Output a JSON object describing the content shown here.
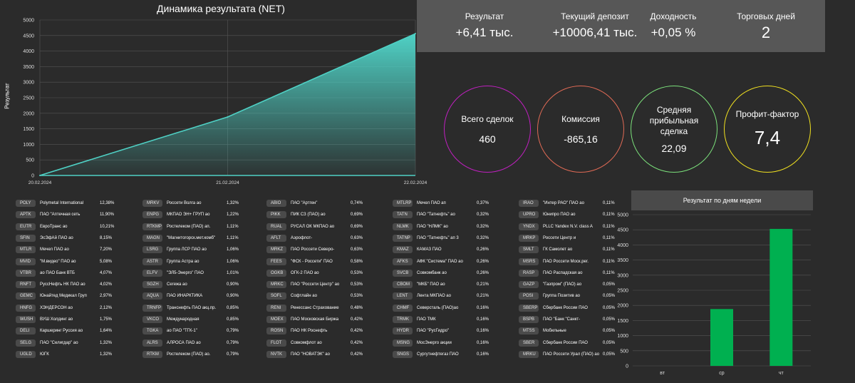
{
  "kpis": [
    {
      "label": "Результат",
      "value": "+6,41 тыс."
    },
    {
      "label": "Текущий депозит",
      "value": "+10006,41 тыс."
    },
    {
      "label": "Доходность",
      "value": "+0,05 %"
    },
    {
      "label": "Торговых дней",
      "value": "2"
    }
  ],
  "circles": [
    {
      "label": "Всего сделок",
      "value": "460",
      "color": "#c020c0"
    },
    {
      "label": "Комиссия",
      "value": "-865,16",
      "color": "#e06a55"
    },
    {
      "label": "Средняя прибыльная сделка",
      "value": "22,09",
      "color": "#7be07b"
    },
    {
      "label": "Профит-фактор",
      "value": "7,4",
      "color": "#f0e020"
    }
  ],
  "chart_data": [
    {
      "type": "area",
      "title": "Динамика результата (NET)",
      "xlabel": "",
      "ylabel": "Результат",
      "x_ticks": [
        "20.02.2024",
        "21.02.2024",
        "22.02.2024"
      ],
      "x": [
        0,
        1,
        2
      ],
      "y": [
        0,
        1880,
        4560
      ],
      "y_ticks": [
        0,
        500,
        1000,
        1500,
        2000,
        2500,
        3000,
        3500,
        4000,
        4500,
        5000
      ],
      "ylim": [
        0,
        5000
      ],
      "color": "#4fd1c5",
      "grid": true
    },
    {
      "type": "bar",
      "title": "Результат по дням недели",
      "categories": [
        "вт",
        "ср",
        "чт"
      ],
      "values": [
        0,
        1880,
        4530
      ],
      "y_ticks": [
        0,
        500,
        1000,
        1500,
        2000,
        2500,
        3000,
        3500,
        4000,
        4500,
        5000
      ],
      "ylim": [
        0,
        5000
      ],
      "color": "#00b050",
      "grid": true
    }
  ],
  "tickers": [
    [
      {
        "t": "POLY",
        "n": "Polymetal International",
        "p": "12,38%"
      },
      {
        "t": "APTK",
        "n": "ПАО \"Аптечная сеть",
        "p": "11,90%"
      },
      {
        "t": "EUTR",
        "n": "ЕвроТранс ао",
        "p": "10,21%"
      },
      {
        "t": "SFIN",
        "n": "ЭсЭфАй ПАО ао",
        "p": "8,15%"
      },
      {
        "t": "MTLR",
        "n": "Мечел ПАО ао",
        "p": "7,20%"
      },
      {
        "t": "MVID",
        "n": "\"М.видео\" ПАО ао",
        "p": "5,08%"
      },
      {
        "t": "VTBR",
        "n": "ао ПАО Банк ВТБ",
        "p": "4,07%"
      },
      {
        "t": "RNFT",
        "n": "РуссНефть НК ПАО ао",
        "p": "4,02%"
      },
      {
        "t": "GEMC",
        "n": "Юнайтед Медикал Груп",
        "p": "2,97%"
      },
      {
        "t": "HNFG",
        "n": "ХЭНДЕРСОН ао",
        "p": "2,12%"
      },
      {
        "t": "WUSH",
        "n": "ВУШ Холдинг ао",
        "p": "1,75%"
      },
      {
        "t": "DELI",
        "n": "Каршеринг Руссия ао",
        "p": "1,64%"
      },
      {
        "t": "SELG",
        "n": "ПАО \"Селигдар\" ао",
        "p": "1,32%"
      },
      {
        "t": "UGLD",
        "n": "ЮГК",
        "p": "1,32%"
      }
    ],
    [
      {
        "t": "MRKV",
        "n": "Россети Волга ао",
        "p": "1,32%"
      },
      {
        "t": "ENPG",
        "n": "МКПАО ЭН+ ГРУП ао",
        "p": "1,22%"
      },
      {
        "t": "RTKMP",
        "n": "Ростелеком (ПАО) ап.",
        "p": "1,11%"
      },
      {
        "t": "MAGN",
        "n": "\"Магнитогорск.мет.комб\"",
        "p": "1,11%"
      },
      {
        "t": "LSRG",
        "n": "Группа ЛСР ПАО ао",
        "p": "1,06%"
      },
      {
        "t": "ASTR",
        "n": "Группа Астра ао",
        "p": "1,06%"
      },
      {
        "t": "ELFV",
        "n": "\"ЭЛ5-Энерго\" ПАО",
        "p": "1,01%"
      },
      {
        "t": "SGZH",
        "n": "Сегежа ао",
        "p": "0,90%"
      },
      {
        "t": "AQUA",
        "n": "ПАО ИНАРКТИКА",
        "p": "0,90%"
      },
      {
        "t": "TRNFP",
        "n": "Транснефть ПАО акц.пр.",
        "p": "0,85%"
      },
      {
        "t": "VKCO",
        "n": "Международная",
        "p": "0,85%"
      },
      {
        "t": "TGKA",
        "n": "ао ПАО \"ТГК-1\"",
        "p": "0,79%"
      },
      {
        "t": "ALRS",
        "n": "АЛРОСА ПАО ао",
        "p": "0,79%"
      },
      {
        "t": "RTKM",
        "n": "Ростелеком (ПАО) ао.",
        "p": "0,79%"
      }
    ],
    [
      {
        "t": "ABIO",
        "n": "ПАО \"Артген\"",
        "p": "0,74%"
      },
      {
        "t": "PIKK",
        "n": "ПИК СЗ (ПАО) ао",
        "p": "0,69%"
      },
      {
        "t": "RUAL",
        "n": "РУСАЛ ОК МКПАО ао",
        "p": "0,69%"
      },
      {
        "t": "AFLT",
        "n": "Аэрофлот-",
        "p": "0,63%"
      },
      {
        "t": "MRKZ",
        "n": "ПАО Россети Северо-",
        "p": "0,63%"
      },
      {
        "t": "FEES",
        "n": "\"ФСК - Россети\" ПАО",
        "p": "0,58%"
      },
      {
        "t": "OGKB",
        "n": "ОГК-2 ПАО ао",
        "p": "0,53%"
      },
      {
        "t": "MRKC",
        "n": "ПАО \"Россети Центр\" ао",
        "p": "0,53%"
      },
      {
        "t": "SOFL",
        "n": "Софтлайн ао",
        "p": "0,53%"
      },
      {
        "t": "RENI",
        "n": "Ренессанс Страхование",
        "p": "0,48%"
      },
      {
        "t": "MOEX",
        "n": "ПАО Московская Биржа",
        "p": "0,42%"
      },
      {
        "t": "ROSN",
        "n": "ПАО НК Роснефть",
        "p": "0,42%"
      },
      {
        "t": "FLOT",
        "n": "Совкомфлот ао",
        "p": "0,42%"
      },
      {
        "t": "NVTK",
        "n": "ПАО \"НОВАТЭК\" ао",
        "p": "0,42%"
      }
    ],
    [
      {
        "t": "MTLRP",
        "n": "Мечел ПАО ап",
        "p": "0,37%"
      },
      {
        "t": "TATN",
        "n": "ПАО \"Татнефть\" ао",
        "p": "0,32%"
      },
      {
        "t": "NLMK",
        "n": "ПАО \"НЛМК\" ао",
        "p": "0,32%"
      },
      {
        "t": "TATNP",
        "n": "ПАО \"Татнефть\" ап 3",
        "p": "0,32%"
      },
      {
        "t": "KMAZ",
        "n": "КАМАЗ ПАО",
        "p": "0,26%"
      },
      {
        "t": "AFKS",
        "n": "АФК \"Система\" ПАО ао",
        "p": "0,26%"
      },
      {
        "t": "SVCB",
        "n": "Совкомбанк ао",
        "p": "0,26%"
      },
      {
        "t": "CBOM",
        "n": "\"МКБ\" ПАО ао",
        "p": "0,21%"
      },
      {
        "t": "LENT",
        "n": "Лента МКПАО ао",
        "p": "0,21%"
      },
      {
        "t": "CHMF",
        "n": "Северсталь (ПАО)ао",
        "p": "0,16%"
      },
      {
        "t": "TRMK",
        "n": "ПАО ТМК",
        "p": "0,16%"
      },
      {
        "t": "HYDR",
        "n": "ПАО \"РусГидро\"",
        "p": "0,16%"
      },
      {
        "t": "MSNG",
        "n": "МосЭнерго акции",
        "p": "0,16%"
      },
      {
        "t": "SNGS",
        "n": "Сургутнефтегаз ПАО",
        "p": "0,16%"
      }
    ],
    [
      {
        "t": "IRAO",
        "n": "\"Интер РАО\" ПАО ао",
        "p": "0,11%"
      },
      {
        "t": "UPRO",
        "n": "Юнипро ПАО ао",
        "p": "0,11%"
      },
      {
        "t": "YNDX",
        "n": "PLLC Yandex N.V. class A",
        "p": "0,11%"
      },
      {
        "t": "MRKP",
        "n": "Россети Центр и",
        "p": "0,11%"
      },
      {
        "t": "SMLT",
        "n": "ГК Самолет ао",
        "p": "0,11%"
      },
      {
        "t": "MSRS",
        "n": "ПАО Россети Моск.рег.",
        "p": "0,11%"
      },
      {
        "t": "RASP",
        "n": "ПАО Распадская ао",
        "p": "0,11%"
      },
      {
        "t": "GAZP",
        "n": "\"Газпром\" (ПАО) ао",
        "p": "0,05%"
      },
      {
        "t": "POSI",
        "n": "Группа Позитив ао",
        "p": "0,05%"
      },
      {
        "t": "SBERP",
        "n": "Сбербанк России ПАО",
        "p": "0,05%"
      },
      {
        "t": "BSPB",
        "n": "ПАО \"Банк \"Санкт-",
        "p": "0,05%"
      },
      {
        "t": "MTSS",
        "n": "Мобильные",
        "p": "0,05%"
      },
      {
        "t": "SBER",
        "n": "Сбербанк России ПАО",
        "p": "0,05%"
      },
      {
        "t": "MRKU",
        "n": "ПАО Россети Урал (ПАО) ао",
        "p": "0,05%"
      }
    ]
  ]
}
